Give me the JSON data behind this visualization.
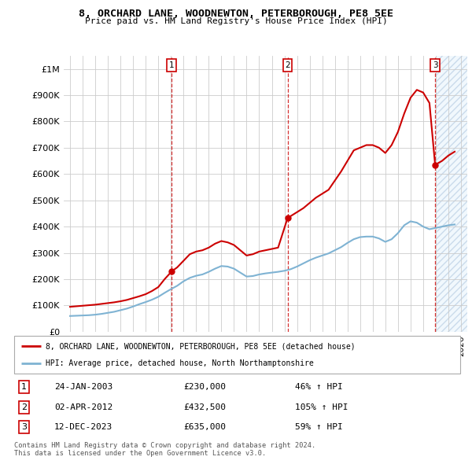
{
  "title": "8, ORCHARD LANE, WOODNEWTON, PETERBOROUGH, PE8 5EE",
  "subtitle": "Price paid vs. HM Land Registry's House Price Index (HPI)",
  "legend_line1": "8, ORCHARD LANE, WOODNEWTON, PETERBOROUGH, PE8 5EE (detached house)",
  "legend_line2": "HPI: Average price, detached house, North Northamptonshire",
  "footer1": "Contains HM Land Registry data © Crown copyright and database right 2024.",
  "footer2": "This data is licensed under the Open Government Licence v3.0.",
  "transactions": [
    {
      "num": 1,
      "date": "24-JAN-2003",
      "price": 230000,
      "hpi_pct": "46%",
      "x_year": 2003.07
    },
    {
      "num": 2,
      "date": "02-APR-2012",
      "price": 432500,
      "hpi_pct": "105%",
      "x_year": 2012.25
    },
    {
      "num": 3,
      "date": "12-DEC-2023",
      "price": 635000,
      "hpi_pct": "59%",
      "x_year": 2023.95
    }
  ],
  "red_color": "#cc0000",
  "blue_color": "#7fb3d3",
  "grid_color": "#cccccc",
  "hatch_color": "#ddeeff",
  "ylim": [
    0,
    1050000
  ],
  "xlim": [
    1994.5,
    2026.5
  ],
  "hatch_start": 2024.0,
  "red_line_data_x": [
    1995.0,
    1995.5,
    1996.0,
    1996.5,
    1997.0,
    1997.5,
    1998.0,
    1998.5,
    1999.0,
    1999.5,
    2000.0,
    2000.5,
    2001.0,
    2001.5,
    2002.0,
    2002.5,
    2003.07,
    2003.5,
    2004.0,
    2004.5,
    2005.0,
    2005.5,
    2006.0,
    2006.5,
    2007.0,
    2007.5,
    2008.0,
    2008.5,
    2009.0,
    2009.5,
    2010.0,
    2010.5,
    2011.0,
    2011.5,
    2012.25,
    2012.5,
    2013.0,
    2013.5,
    2014.0,
    2014.5,
    2015.0,
    2015.5,
    2016.0,
    2016.5,
    2017.0,
    2017.5,
    2018.0,
    2018.5,
    2019.0,
    2019.5,
    2020.0,
    2020.5,
    2021.0,
    2021.5,
    2022.0,
    2022.5,
    2023.0,
    2023.5,
    2023.95,
    2024.5,
    2025.0,
    2025.5
  ],
  "red_line_data_y": [
    95000,
    97000,
    99000,
    101000,
    103000,
    106000,
    109000,
    112000,
    116000,
    121000,
    128000,
    135000,
    143000,
    155000,
    170000,
    200000,
    230000,
    245000,
    270000,
    295000,
    305000,
    310000,
    320000,
    335000,
    345000,
    340000,
    330000,
    310000,
    290000,
    295000,
    305000,
    310000,
    315000,
    320000,
    432500,
    440000,
    455000,
    470000,
    490000,
    510000,
    525000,
    540000,
    575000,
    610000,
    650000,
    690000,
    700000,
    710000,
    710000,
    700000,
    680000,
    710000,
    760000,
    830000,
    890000,
    920000,
    910000,
    870000,
    635000,
    650000,
    670000,
    685000
  ],
  "blue_line_data_x": [
    1995.0,
    1995.5,
    1996.0,
    1996.5,
    1997.0,
    1997.5,
    1998.0,
    1998.5,
    1999.0,
    1999.5,
    2000.0,
    2000.5,
    2001.0,
    2001.5,
    2002.0,
    2002.5,
    2003.0,
    2003.5,
    2004.0,
    2004.5,
    2005.0,
    2005.5,
    2006.0,
    2006.5,
    2007.0,
    2007.5,
    2008.0,
    2008.5,
    2009.0,
    2009.5,
    2010.0,
    2010.5,
    2011.0,
    2011.5,
    2012.0,
    2012.5,
    2013.0,
    2013.5,
    2014.0,
    2014.5,
    2015.0,
    2015.5,
    2016.0,
    2016.5,
    2017.0,
    2017.5,
    2018.0,
    2018.5,
    2019.0,
    2019.5,
    2020.0,
    2020.5,
    2021.0,
    2021.5,
    2022.0,
    2022.5,
    2023.0,
    2023.5,
    2024.0,
    2024.5,
    2025.0,
    2025.5
  ],
  "blue_line_data_y": [
    60000,
    61000,
    62000,
    63000,
    65000,
    68000,
    72000,
    76000,
    82000,
    88000,
    96000,
    105000,
    113000,
    122000,
    133000,
    148000,
    162000,
    175000,
    192000,
    205000,
    213000,
    218000,
    228000,
    240000,
    250000,
    248000,
    240000,
    225000,
    210000,
    212000,
    218000,
    222000,
    225000,
    228000,
    232000,
    238000,
    248000,
    260000,
    272000,
    282000,
    290000,
    298000,
    310000,
    322000,
    338000,
    352000,
    360000,
    362000,
    362000,
    355000,
    342000,
    352000,
    375000,
    405000,
    420000,
    415000,
    400000,
    390000,
    395000,
    400000,
    405000,
    408000
  ]
}
